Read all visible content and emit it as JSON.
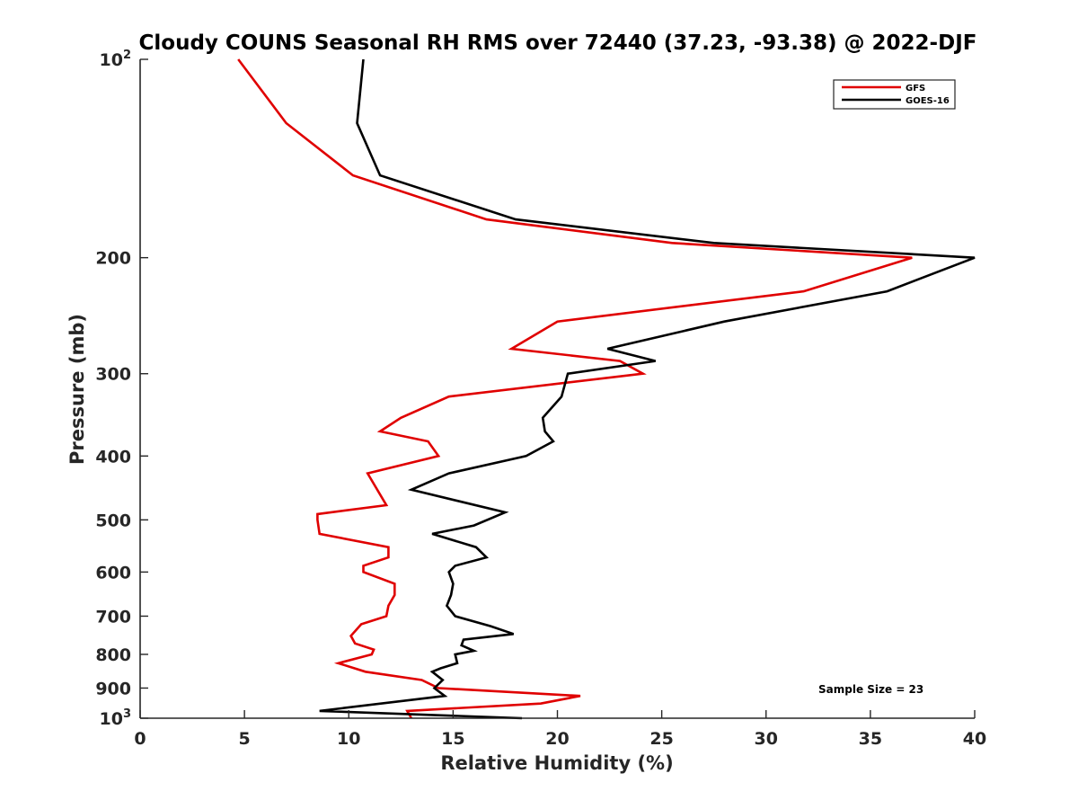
{
  "chart_data": {
    "type": "line",
    "title": "Cloudy COUNS Seasonal RH RMS over 72440 (37.23, -93.38) @ 2022-DJF",
    "xlabel": "Relative Humidity (%)",
    "ylabel": "Pressure (mb)",
    "xlim": [
      0,
      40
    ],
    "ylim": [
      100,
      1000
    ],
    "yscale": "log",
    "y_direction": "reversed",
    "x_ticks": [
      {
        "value": 0,
        "label": "0"
      },
      {
        "value": 5,
        "label": "5"
      },
      {
        "value": 10,
        "label": "10"
      },
      {
        "value": 15,
        "label": "15"
      },
      {
        "value": 20,
        "label": "20"
      },
      {
        "value": 25,
        "label": "25"
      },
      {
        "value": 30,
        "label": "30"
      },
      {
        "value": 35,
        "label": "35"
      },
      {
        "value": 40,
        "label": "40"
      }
    ],
    "y_ticks": [
      {
        "value": 100,
        "base": "10",
        "exp": "2"
      },
      {
        "value": 200,
        "base": "200",
        "exp": ""
      },
      {
        "value": 300,
        "base": "300",
        "exp": ""
      },
      {
        "value": 400,
        "base": "400",
        "exp": ""
      },
      {
        "value": 500,
        "base": "500",
        "exp": ""
      },
      {
        "value": 600,
        "base": "600",
        "exp": ""
      },
      {
        "value": 700,
        "base": "700",
        "exp": ""
      },
      {
        "value": 800,
        "base": "800",
        "exp": ""
      },
      {
        "value": 900,
        "base": "900",
        "exp": ""
      },
      {
        "value": 1000,
        "base": "10",
        "exp": "3"
      }
    ],
    "legend_position": "top-right",
    "annotation": "Sample Size = 23",
    "series": [
      {
        "name": "GFS",
        "color": "#e00000",
        "points": [
          {
            "x": 4.7,
            "p": 100
          },
          {
            "x": 7.0,
            "p": 125
          },
          {
            "x": 10.2,
            "p": 150
          },
          {
            "x": 16.6,
            "p": 175
          },
          {
            "x": 25.5,
            "p": 190
          },
          {
            "x": 37.0,
            "p": 200
          },
          {
            "x": 31.8,
            "p": 225
          },
          {
            "x": 20.0,
            "p": 250
          },
          {
            "x": 17.8,
            "p": 275
          },
          {
            "x": 23.0,
            "p": 287
          },
          {
            "x": 24.1,
            "p": 300
          },
          {
            "x": 14.8,
            "p": 325
          },
          {
            "x": 12.5,
            "p": 350
          },
          {
            "x": 11.5,
            "p": 367
          },
          {
            "x": 13.8,
            "p": 380
          },
          {
            "x": 14.3,
            "p": 400
          },
          {
            "x": 10.9,
            "p": 425
          },
          {
            "x": 11.8,
            "p": 475
          },
          {
            "x": 8.5,
            "p": 490
          },
          {
            "x": 8.5,
            "p": 500
          },
          {
            "x": 8.6,
            "p": 525
          },
          {
            "x": 11.9,
            "p": 550
          },
          {
            "x": 11.9,
            "p": 570
          },
          {
            "x": 10.7,
            "p": 587
          },
          {
            "x": 10.7,
            "p": 600
          },
          {
            "x": 12.2,
            "p": 625
          },
          {
            "x": 12.2,
            "p": 650
          },
          {
            "x": 11.9,
            "p": 675
          },
          {
            "x": 11.8,
            "p": 700
          },
          {
            "x": 10.6,
            "p": 720
          },
          {
            "x": 10.1,
            "p": 750
          },
          {
            "x": 10.3,
            "p": 770
          },
          {
            "x": 11.2,
            "p": 787
          },
          {
            "x": 11.1,
            "p": 800
          },
          {
            "x": 9.5,
            "p": 825
          },
          {
            "x": 10.8,
            "p": 850
          },
          {
            "x": 13.5,
            "p": 875
          },
          {
            "x": 14.3,
            "p": 900
          },
          {
            "x": 21.1,
            "p": 925
          },
          {
            "x": 19.2,
            "p": 950
          },
          {
            "x": 12.8,
            "p": 975
          },
          {
            "x": 13.0,
            "p": 1000
          }
        ]
      },
      {
        "name": "GOES-16",
        "color": "#000000",
        "points": [
          {
            "x": 10.7,
            "p": 100
          },
          {
            "x": 10.4,
            "p": 125
          },
          {
            "x": 11.5,
            "p": 150
          },
          {
            "x": 18.0,
            "p": 175
          },
          {
            "x": 27.5,
            "p": 190
          },
          {
            "x": 40.0,
            "p": 200
          },
          {
            "x": 35.8,
            "p": 225
          },
          {
            "x": 28.0,
            "p": 250
          },
          {
            "x": 22.4,
            "p": 275
          },
          {
            "x": 24.7,
            "p": 287
          },
          {
            "x": 20.5,
            "p": 300
          },
          {
            "x": 20.2,
            "p": 325
          },
          {
            "x": 19.3,
            "p": 350
          },
          {
            "x": 19.4,
            "p": 367
          },
          {
            "x": 19.8,
            "p": 380
          },
          {
            "x": 18.5,
            "p": 400
          },
          {
            "x": 14.8,
            "p": 425
          },
          {
            "x": 13.0,
            "p": 450
          },
          {
            "x": 17.5,
            "p": 487
          },
          {
            "x": 16.0,
            "p": 510
          },
          {
            "x": 14.0,
            "p": 525
          },
          {
            "x": 16.1,
            "p": 550
          },
          {
            "x": 16.6,
            "p": 570
          },
          {
            "x": 15.1,
            "p": 587
          },
          {
            "x": 14.8,
            "p": 600
          },
          {
            "x": 15.0,
            "p": 625
          },
          {
            "x": 14.9,
            "p": 650
          },
          {
            "x": 14.7,
            "p": 675
          },
          {
            "x": 15.1,
            "p": 700
          },
          {
            "x": 16.8,
            "p": 725
          },
          {
            "x": 17.9,
            "p": 745
          },
          {
            "x": 15.5,
            "p": 760
          },
          {
            "x": 15.4,
            "p": 775
          },
          {
            "x": 16.0,
            "p": 790
          },
          {
            "x": 15.1,
            "p": 800
          },
          {
            "x": 15.2,
            "p": 825
          },
          {
            "x": 14.4,
            "p": 840
          },
          {
            "x": 14.0,
            "p": 850
          },
          {
            "x": 14.5,
            "p": 875
          },
          {
            "x": 14.1,
            "p": 900
          },
          {
            "x": 14.6,
            "p": 925
          },
          {
            "x": 8.6,
            "p": 975
          },
          {
            "x": 18.3,
            "p": 1000
          }
        ]
      }
    ]
  }
}
